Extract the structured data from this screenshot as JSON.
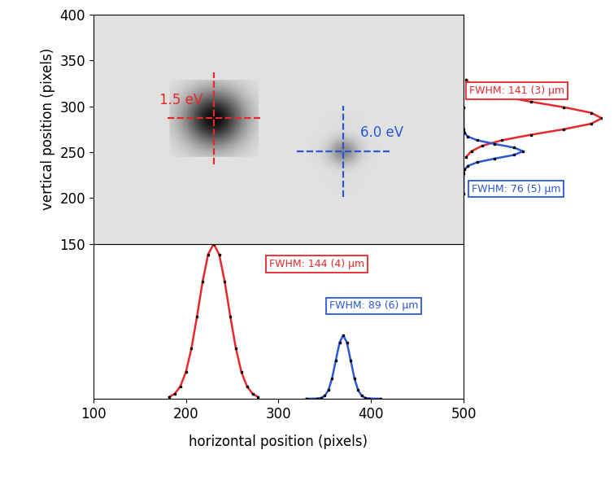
{
  "chart_data": [
    {
      "type": "image",
      "ylabel": "vertical position (pixels)",
      "xlim": [
        100,
        500
      ],
      "ylim": [
        150,
        400
      ],
      "yticks": [
        150,
        200,
        250,
        300,
        350,
        400
      ],
      "tick_labels": "y",
      "spots": [
        {
          "name": "1.5 eV",
          "color": "#e8282b",
          "x": 230,
          "y": 287
        },
        {
          "name": "6.0 eV",
          "color": "#2a57d8",
          "x": 370,
          "y": 251
        }
      ]
    },
    {
      "type": "line",
      "xlabel": "horizontal position (pixels)",
      "xlim": [
        100,
        500
      ],
      "xticks": [
        100,
        200,
        300,
        400,
        500
      ],
      "ylim": [
        0,
        1
      ],
      "tick_labels": "x",
      "series": [
        {
          "name": "FWHM: 144 (4) µm",
          "color": "#e8282b",
          "x": [
            182,
            188,
            194,
            200,
            206,
            212,
            218,
            224,
            230,
            236,
            242,
            248,
            254,
            260,
            266,
            272,
            278
          ],
          "values": [
            0.011,
            0.032,
            0.08,
            0.172,
            0.325,
            0.531,
            0.755,
            0.932,
            1.0,
            0.932,
            0.755,
            0.531,
            0.325,
            0.172,
            0.08,
            0.032,
            0.011
          ]
        },
        {
          "name": "FWHM: 89 (6) µm",
          "color": "#2a57d8",
          "x": [
            330,
            342,
            346,
            350,
            354,
            358,
            362,
            366,
            370,
            374,
            378,
            382,
            386,
            390,
            394,
            398,
            410
          ],
          "values": [
            0,
            0.001,
            0.005,
            0.018,
            0.055,
            0.133,
            0.249,
            0.362,
            0.41,
            0.362,
            0.249,
            0.133,
            0.055,
            0.018,
            0.005,
            0.001,
            0
          ]
        }
      ]
    },
    {
      "type": "line",
      "orientation": "horizontal",
      "ylim": [
        150,
        400
      ],
      "xlim": [
        0,
        1
      ],
      "tick_labels": false,
      "series": [
        {
          "name": "FWHM: 141 (3) µm",
          "color": "#e8282b",
          "y": [
            245,
            251,
            257,
            263,
            269,
            275,
            281,
            287,
            293,
            299,
            305,
            311,
            317,
            323,
            329
          ],
          "values": [
            0.02,
            0.056,
            0.135,
            0.278,
            0.487,
            0.726,
            0.923,
            1.0,
            0.923,
            0.726,
            0.487,
            0.278,
            0.135,
            0.056,
            0.02
          ]
        },
        {
          "name": "FWHM: 76 (5) µm",
          "color": "#2a57d8",
          "y": [
            205,
            227,
            231,
            235,
            239,
            243,
            247,
            251,
            255,
            259,
            263,
            267,
            271,
            275,
            299
          ],
          "values": [
            0,
            0.001,
            0.007,
            0.031,
            0.099,
            0.224,
            0.365,
            0.43,
            0.365,
            0.224,
            0.099,
            0.031,
            0.007,
            0.001,
            0
          ]
        }
      ]
    }
  ]
}
